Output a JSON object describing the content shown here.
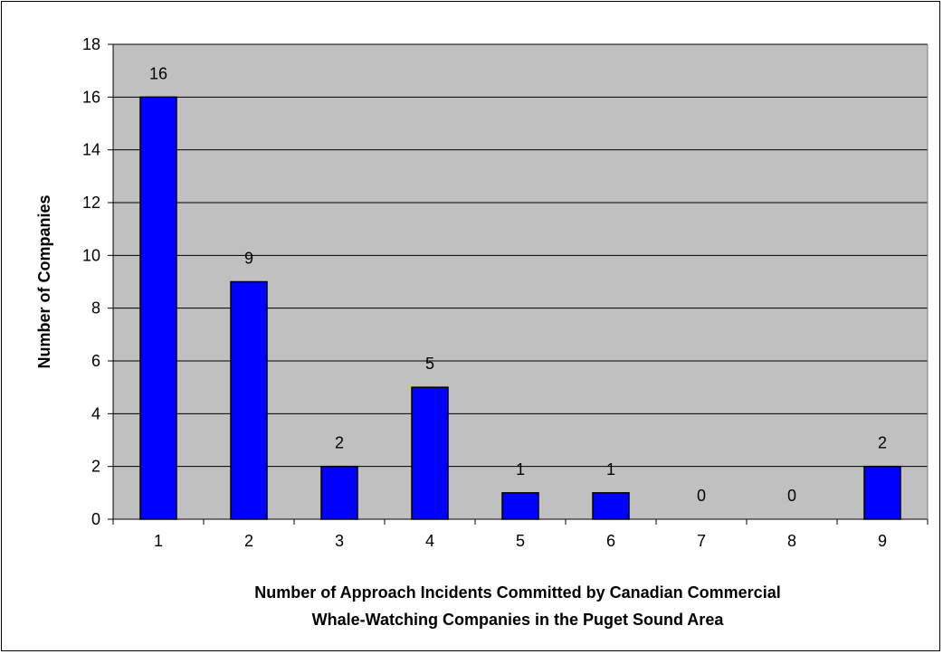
{
  "chart_data": {
    "type": "bar",
    "categories": [
      "1",
      "2",
      "3",
      "4",
      "5",
      "6",
      "7",
      "8",
      "9"
    ],
    "values": [
      16,
      9,
      2,
      5,
      1,
      1,
      0,
      0,
      2
    ],
    "data_labels": [
      "16",
      "9",
      "2",
      "5",
      "1",
      "1",
      "0",
      "0",
      "2"
    ],
    "title": "",
    "xlabel_lines": [
      "Number of Approach Incidents Committed by Canadian Commercial",
      "Whale-Watching Companies in the Puget Sound Area"
    ],
    "ylabel": "Number of Companies",
    "ylim": [
      0,
      18
    ],
    "yticks": [
      "0",
      "2",
      "4",
      "6",
      "8",
      "10",
      "12",
      "14",
      "16",
      "18"
    ],
    "grid": "horizontal",
    "legend": "none",
    "colors": {
      "bar_fill": "#0000ff",
      "bar_stroke": "#000000",
      "plot_background": "#c0c0c0",
      "gridline": "#000000"
    }
  }
}
